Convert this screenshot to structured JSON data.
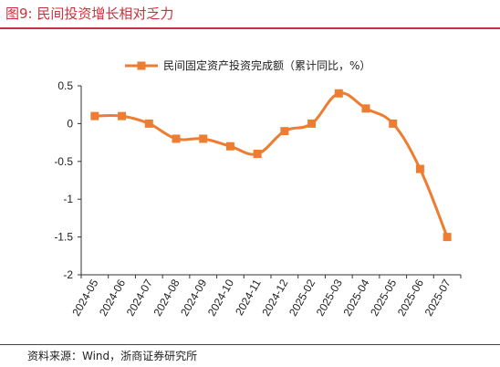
{
  "figure": {
    "title": "图9:   民间投资增长相对乏力",
    "source": "资料来源：Wind，浙商证券研究所"
  },
  "chart_data": {
    "type": "line",
    "legend_position": "top",
    "grid": false,
    "line_color": "#ed7d31",
    "categories": [
      "2024-05",
      "2024-06",
      "2024-07",
      "2024-08",
      "2024-09",
      "2024-10",
      "2024-11",
      "2024-12",
      "2025-02",
      "2025-03",
      "2025-04",
      "2025-05",
      "2025-06",
      "2025-07"
    ],
    "ylim": [
      -2,
      0.5
    ],
    "yticks": [
      {
        "value": 0.5,
        "label": "0.5"
      },
      {
        "value": 0,
        "label": "0"
      },
      {
        "value": -0.5,
        "label": "-0.5"
      },
      {
        "value": -1,
        "label": "-1"
      },
      {
        "value": -1.5,
        "label": "-1.5"
      },
      {
        "value": -2,
        "label": "-2"
      }
    ],
    "series": [
      {
        "name": "民间固定资产投资完成额（累计同比，%）",
        "values": [
          0.1,
          0.1,
          0.0,
          -0.2,
          -0.2,
          -0.3,
          -0.4,
          -0.1,
          0.0,
          0.4,
          0.2,
          0.0,
          -0.6,
          -1.5
        ]
      }
    ]
  }
}
